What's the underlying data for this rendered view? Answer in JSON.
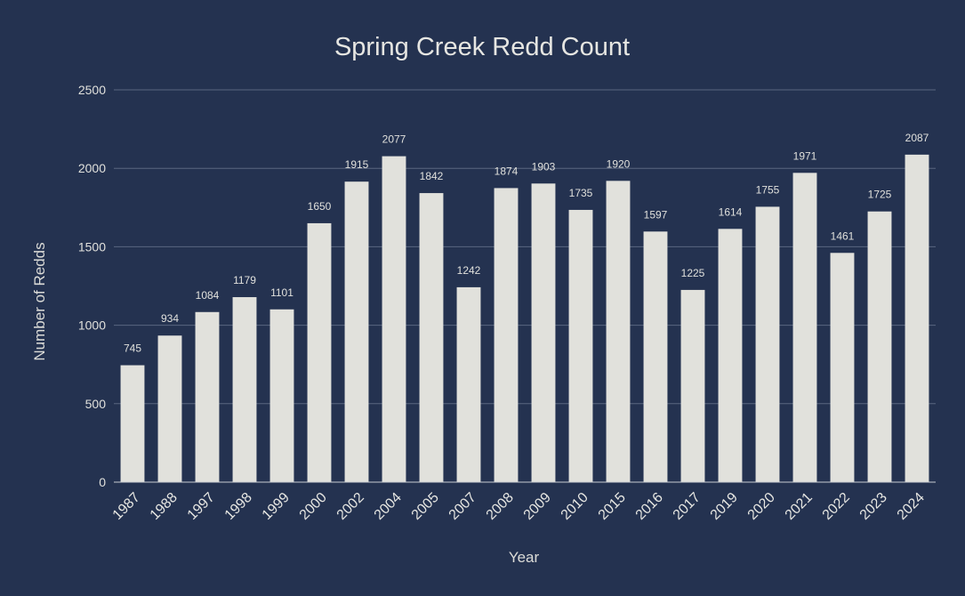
{
  "chart_data": {
    "type": "bar",
    "title": "Spring Creek Redd Count",
    "xlabel": "Year",
    "ylabel": "Number of Redds",
    "ylim": [
      0,
      2500
    ],
    "yticks": [
      0,
      500,
      1000,
      1500,
      2000,
      2500
    ],
    "grid": true,
    "legend": "none",
    "bar_color": "#e1e1dc",
    "background_color": "#243250",
    "categories": [
      "1987",
      "1988",
      "1997",
      "1998",
      "1999",
      "2000",
      "2002",
      "2004",
      "2005",
      "2007",
      "2008",
      "2009",
      "2010",
      "2015",
      "2016",
      "2017",
      "2019",
      "2020",
      "2021",
      "2022",
      "2023",
      "2024"
    ],
    "values": [
      745,
      934,
      1084,
      1179,
      1101,
      1650,
      1915,
      2077,
      1842,
      1242,
      1874,
      1903,
      1735,
      1920,
      1597,
      1225,
      1614,
      1755,
      1971,
      1461,
      1725,
      2087
    ]
  }
}
